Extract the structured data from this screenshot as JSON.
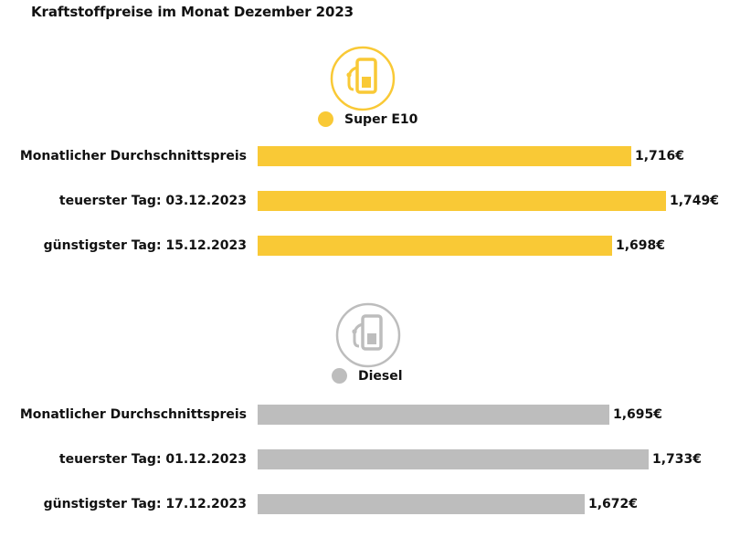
{
  "title": "Kraftstoffpreise im Monat Dezember 2023",
  "colors": {
    "e10": "#f9c936",
    "diesel": "#bdbdbd"
  },
  "chart_data": [
    {
      "type": "bar",
      "orientation": "horizontal",
      "series_name": "Super E10",
      "color": "#f9c936",
      "icon": "fuel-pump-icon",
      "categories": [
        "Monatlicher Durchschnittspreis",
        "teuerster Tag: 03.12.2023",
        "günstigster Tag: 15.12.2023"
      ],
      "values": [
        1.716,
        1.749,
        1.698
      ],
      "value_labels": [
        "1,716€",
        "1,749€",
        "1,698€"
      ]
    },
    {
      "type": "bar",
      "orientation": "horizontal",
      "series_name": "Diesel",
      "color": "#bdbdbd",
      "icon": "fuel-pump-icon",
      "categories": [
        "Monatlicher Durchschnittspreis",
        "teuerster Tag: 01.12.2023",
        "günstigster Tag: 17.12.2023"
      ],
      "values": [
        1.695,
        1.733,
        1.672
      ],
      "value_labels": [
        "1,695€",
        "1,733€",
        "1,672€"
      ]
    }
  ]
}
